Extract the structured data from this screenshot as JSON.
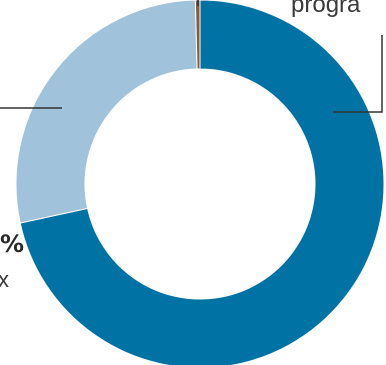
{
  "chart_data": {
    "type": "pie",
    "style": "donut",
    "slices": [
      {
        "value": 71.6,
        "color": "#0072A3"
      },
      {
        "value": 28.0,
        "color": "#A0C3DB"
      },
      {
        "value": 0.4,
        "color": "#8A5A3B"
      }
    ],
    "labels": {
      "top_right_fragment": "progra",
      "left_value_fragment": "%",
      "left_sub_fragment": "x"
    }
  }
}
